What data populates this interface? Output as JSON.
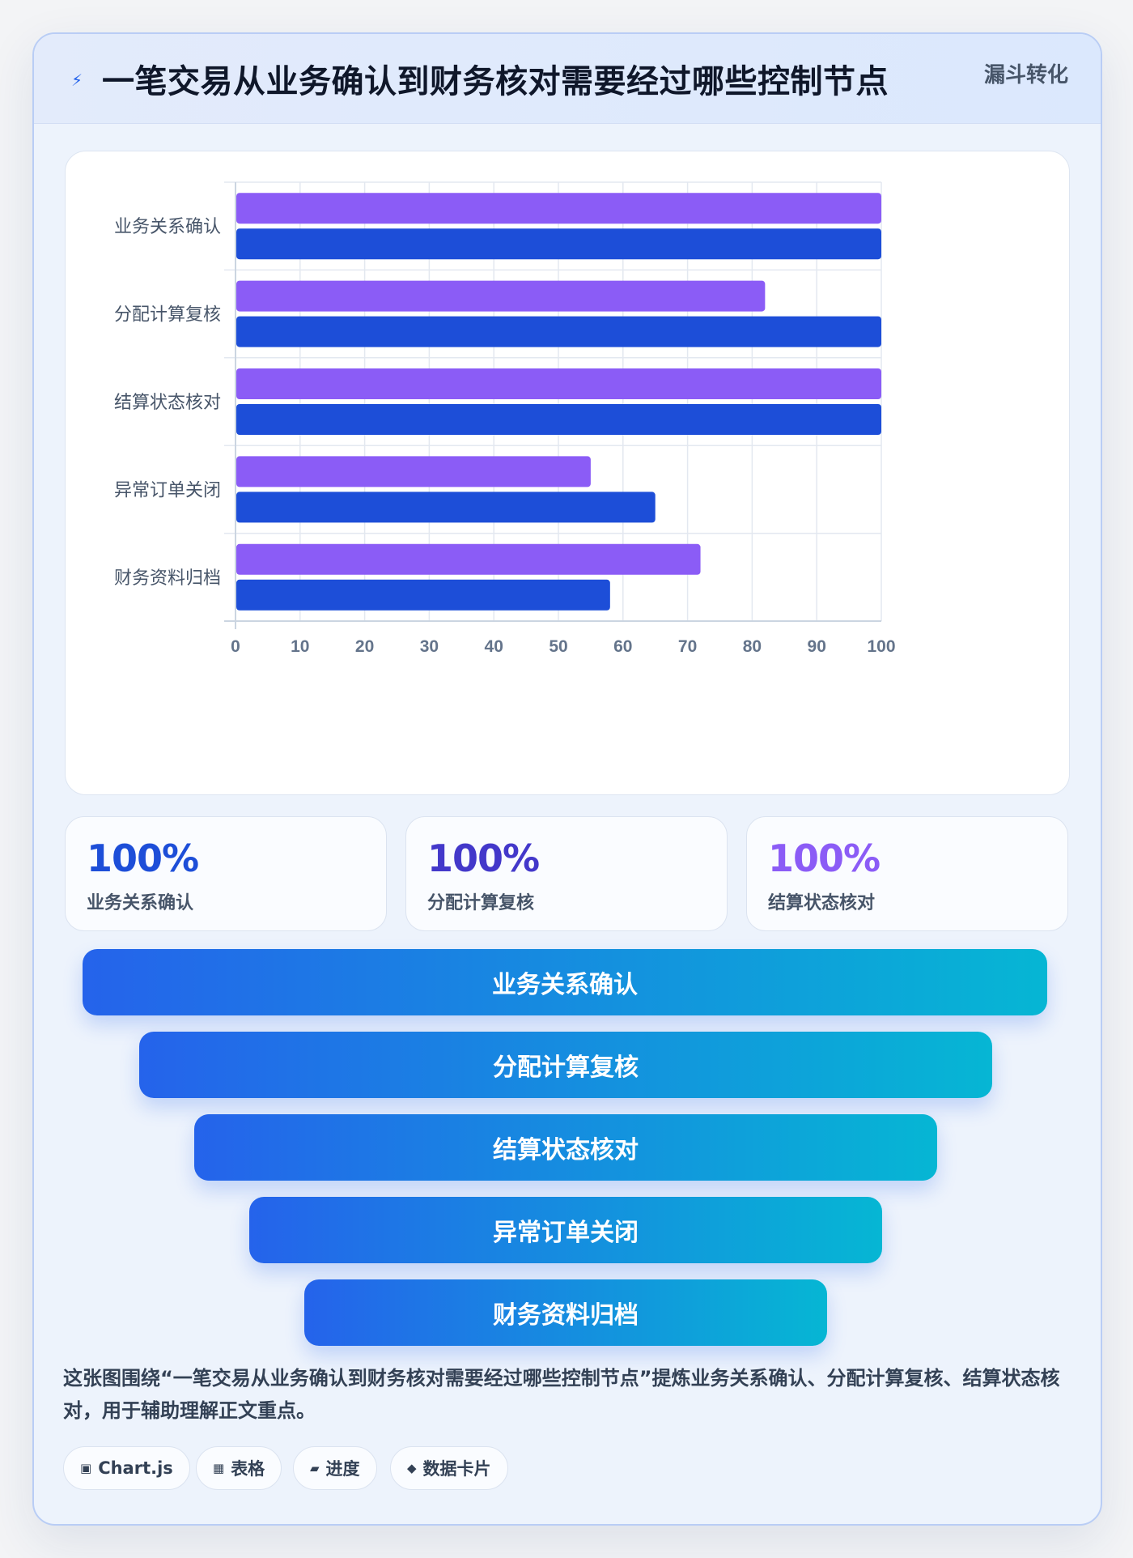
{
  "header": {
    "icon": "lightning-icon",
    "title": "一笔交易从业务确认到财务核对需要经过哪些控制节点",
    "tag": "漏斗转化"
  },
  "chart_data": {
    "type": "bar",
    "orientation": "horizontal",
    "categories": [
      "业务关系确认",
      "分配计算复核",
      "结算状态核对",
      "异常订单关闭",
      "财务资料归档"
    ],
    "series": [
      {
        "values": [
          100,
          82,
          100,
          55,
          72
        ],
        "color": "#8b5cf6"
      },
      {
        "values": [
          100,
          100,
          100,
          65,
          58
        ],
        "color": "#1d4ed8"
      }
    ],
    "xlim": [
      0,
      100
    ],
    "xticks": [
      "0",
      "10",
      "20",
      "30",
      "40",
      "50",
      "60",
      "70",
      "80",
      "90",
      "100"
    ],
    "grid": true,
    "legend": "none"
  },
  "stats": [
    {
      "value": "100%",
      "label": "业务关系确认",
      "color": "#1d4ed8"
    },
    {
      "value": "100%",
      "label": "分配计算复核",
      "color": "#4338ca"
    },
    {
      "value": "100%",
      "label": "结算状态核对",
      "color": "#8b5cf6"
    }
  ],
  "funnel": [
    "业务关系确认",
    "分配计算复核",
    "结算状态核对",
    "异常订单关闭",
    "财务资料归档"
  ],
  "caption": "这张图围绕“一笔交易从业务确认到财务核对需要经过哪些控制节点”提炼业务关系确认、分配计算复核、结算状态核对，用于辅助理解正文重点。",
  "tags": [
    {
      "icon": "▣",
      "label": "Chart.js"
    },
    {
      "icon": "▦",
      "label": "表格"
    },
    {
      "icon": "▰",
      "label": "进度"
    },
    {
      "icon": "◆",
      "label": "数据卡片"
    }
  ]
}
